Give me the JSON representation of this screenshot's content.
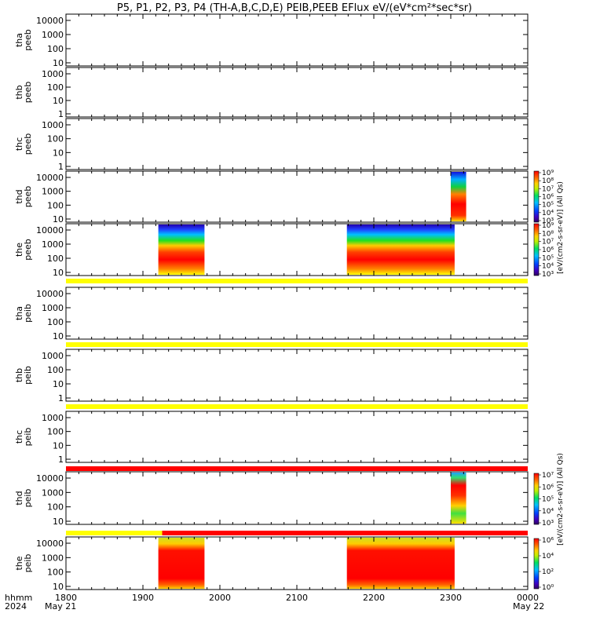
{
  "title": "P5, P1, P2, P3, P4 (TH-A,B,C,D,E) PEIB,PEEB EFlux eV/(eV*cm²*sec*sr)",
  "x_axis": {
    "tick_labels": [
      "1800",
      "1900",
      "2000",
      "2100",
      "2200",
      "2300",
      "0000"
    ],
    "start_date": "May 21",
    "end_date": "May 22",
    "unit_label": "hhmm",
    "year_label": "2024"
  },
  "colors": {
    "flag_yellow": "#ffff00",
    "flag_red": "#ff0000"
  },
  "panels": [
    {
      "probe": "tha",
      "species": "peeb",
      "label": [
        "tha",
        "peeb"
      ],
      "yticks": [
        "10",
        "100",
        "1000",
        "10000"
      ]
    },
    {
      "probe": "thb",
      "species": "peeb",
      "label": [
        "thb",
        "peeb"
      ],
      "yticks": [
        "1",
        "10",
        "100",
        "1000"
      ]
    },
    {
      "probe": "thc",
      "species": "peeb",
      "label": [
        "thc",
        "peeb"
      ],
      "yticks": [
        "1",
        "10",
        "100",
        "1000"
      ]
    },
    {
      "probe": "thd",
      "species": "peeb",
      "label": [
        "thd",
        "peeb"
      ],
      "yticks": [
        "10",
        "100",
        "1000",
        "10000"
      ]
    },
    {
      "probe": "the",
      "species": "peeb",
      "label": [
        "the",
        "peeb"
      ],
      "yticks": [
        "10",
        "100",
        "1000",
        "10000"
      ]
    },
    {
      "probe": "tha",
      "species": "peib",
      "label": [
        "tha",
        "peib"
      ],
      "yticks": [
        "10",
        "100",
        "1000",
        "10000"
      ]
    },
    {
      "probe": "thb",
      "species": "peib",
      "label": [
        "thb",
        "peib"
      ],
      "yticks": [
        "1",
        "10",
        "100",
        "1000"
      ]
    },
    {
      "probe": "thc",
      "species": "peib",
      "label": [
        "thc",
        "peib"
      ],
      "yticks": [
        "1",
        "10",
        "100",
        "1000"
      ]
    },
    {
      "probe": "thd",
      "species": "peib",
      "label": [
        "thd",
        "peib"
      ],
      "yticks": [
        "10",
        "100",
        "1000",
        "10000"
      ]
    },
    {
      "probe": "the",
      "species": "peib",
      "label": [
        "the",
        "peib"
      ],
      "yticks": [
        "10",
        "100",
        "1000",
        "10000"
      ]
    }
  ],
  "colorbars": [
    {
      "label": "[eV/(cm2-s-sr-eV)] (All Qs)",
      "ticks": [
        "10³",
        "10⁴",
        "10⁵",
        "10⁶",
        "10⁷",
        "10⁸",
        "10⁹"
      ]
    },
    {
      "label": "[eV/(cm2-s-sr-eV)] (All Qs)",
      "ticks": [
        "10³",
        "10⁴",
        "10⁵",
        "10⁶",
        "10⁷",
        "10⁸",
        "10⁹"
      ]
    },
    {
      "label": "[eV/(cm2-s-sr-eV)] (All Qs)",
      "ticks": [
        "10³",
        "10⁴",
        "10⁵",
        "10⁶",
        "10⁷"
      ]
    },
    {
      "label": "[eV/(cm2-s-sr-eV)] (All Qs)",
      "ticks": [
        "10⁰",
        "10²",
        "10⁴",
        "10⁶"
      ]
    }
  ],
  "chart_data": {
    "type": "heatmap",
    "x_range_hhmm": [
      "1800",
      "0000"
    ],
    "y_scale": "log",
    "y_unit": "eV",
    "data_intervals": [
      {
        "panel": "thd peeb",
        "start": "2300",
        "end": "2320"
      },
      {
        "panel": "the peeb",
        "start": "1920",
        "end": "1980"
      },
      {
        "panel": "the peeb",
        "start": "2165",
        "end": "2305"
      },
      {
        "panel": "thd peib",
        "start": "2300",
        "end": "2320"
      },
      {
        "panel": "the peib",
        "start": "1920",
        "end": "1980"
      },
      {
        "panel": "the peib",
        "start": "2165",
        "end": "2305"
      }
    ],
    "flag_bars": [
      {
        "after_panel": "the peeb",
        "color": "yellow",
        "start": "1800",
        "end": "0000"
      },
      {
        "after_panel": "tha peib",
        "color": "yellow",
        "start": "1800",
        "end": "0000"
      },
      {
        "after_panel": "thb peib",
        "color": "yellow",
        "start": "1800",
        "end": "0000"
      },
      {
        "after_panel": "thc peib",
        "color": "red",
        "start": "1800",
        "end": "0000"
      },
      {
        "after_panel": "thd peib",
        "color": "yellow",
        "start": "1800",
        "end": "1925"
      },
      {
        "after_panel": "thd peib",
        "color": "red",
        "start": "1925",
        "end": "0000"
      }
    ]
  }
}
